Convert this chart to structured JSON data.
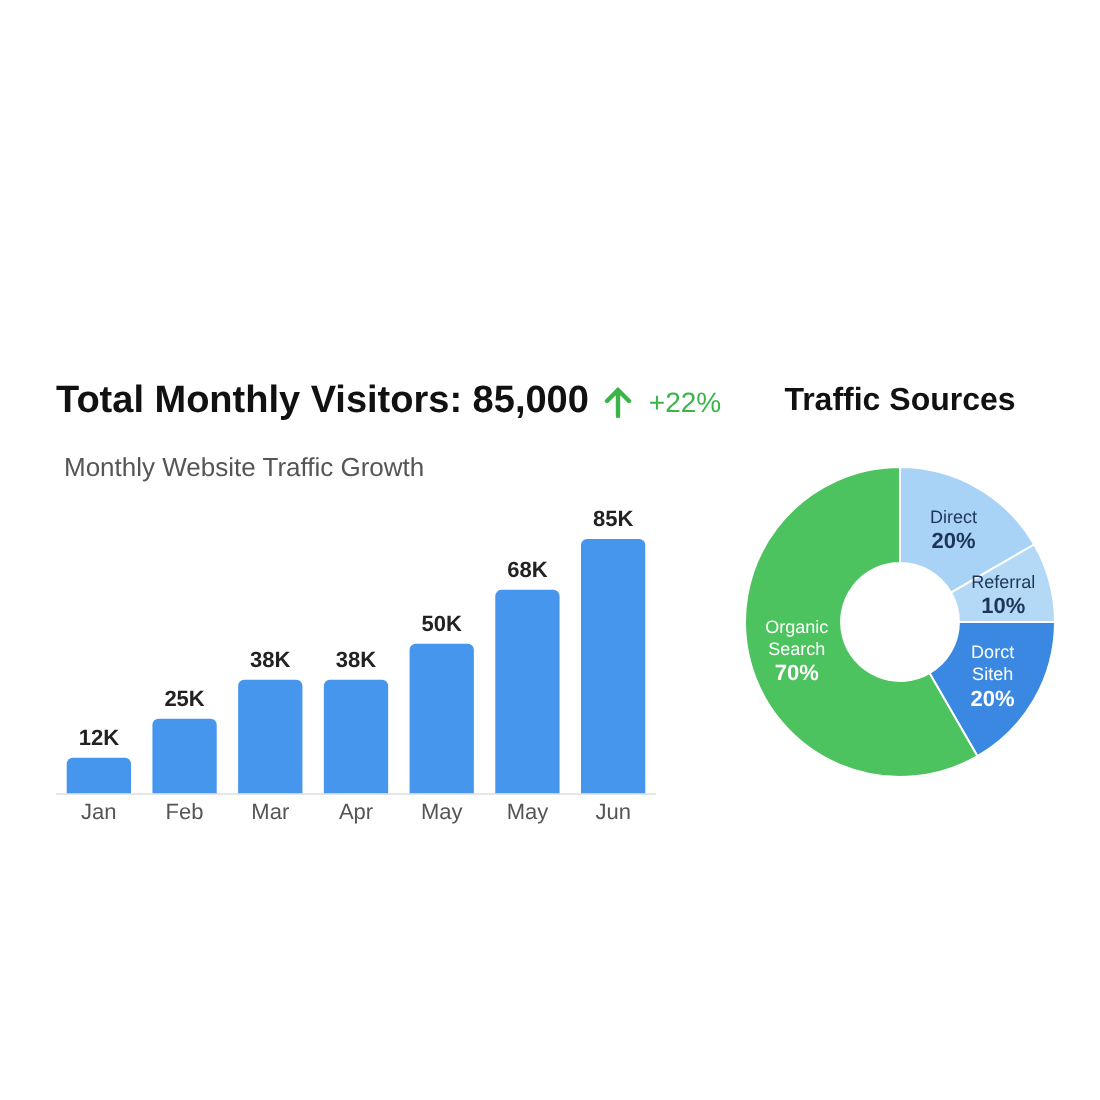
{
  "chart_data": [
    {
      "type": "bar",
      "title": "Total Monthly Visitors: 85,000",
      "subtitle": "Monthly Website Traffic Growth",
      "annotations": [
        "+22%"
      ],
      "categories": [
        "Jan",
        "Feb",
        "Mar",
        "Apr",
        "May",
        "May",
        "Jun"
      ],
      "values": [
        12,
        25,
        38,
        38,
        50,
        68,
        85
      ],
      "value_labels": [
        "12K",
        "25K",
        "38K",
        "38K",
        "50K",
        "68K",
        "85K"
      ],
      "color": "#4596ec",
      "grid": false,
      "legend": false,
      "tick_labels": "x"
    },
    {
      "type": "donut",
      "title": "Traffic Sources",
      "categories": [
        "Direct",
        "Referral",
        "Dorct Siteh",
        "Organic Search"
      ],
      "values": [
        20,
        10,
        20,
        70
      ],
      "value_labels": [
        "20%",
        "10%",
        "20%",
        "70%"
      ],
      "colors": [
        "#a9d3f6",
        "#b4d9f7",
        "#3a88e2",
        "#4cc35e"
      ],
      "legend": false
    }
  ]
}
